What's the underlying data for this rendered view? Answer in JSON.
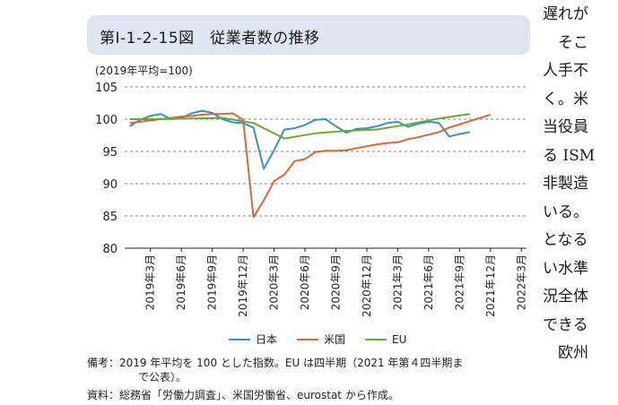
{
  "figure_title": "第Ⅰ-1-2-15図　従業者数の推移",
  "unit_label": "(2019年平均=100)",
  "chart_data": {
    "type": "line",
    "title": "",
    "ylim": [
      80,
      105
    ],
    "yticks": [
      80,
      85,
      90,
      95,
      100,
      105
    ],
    "x": [
      "2019-01",
      "2019-02",
      "2019-03",
      "2019-04",
      "2019-05",
      "2019-06",
      "2019-07",
      "2019-08",
      "2019-09",
      "2019-10",
      "2019-11",
      "2019-12",
      "2020-01",
      "2020-02",
      "2020-03",
      "2020-04",
      "2020-05",
      "2020-06",
      "2020-07",
      "2020-08",
      "2020-09",
      "2020-10",
      "2020-11",
      "2020-12",
      "2021-01",
      "2021-02",
      "2021-03",
      "2021-04",
      "2021-05",
      "2021-06",
      "2021-07",
      "2021-08",
      "2021-09",
      "2021-10",
      "2021-11",
      "2021-12",
      "2022-01",
      "2022-02",
      "2022-03"
    ],
    "xtick_labels": [
      {
        "month": "2019-03",
        "label": "2019年3月"
      },
      {
        "month": "2019-06",
        "label": "2019年6月"
      },
      {
        "month": "2019-09",
        "label": "2019年9月"
      },
      {
        "month": "2019-12",
        "label": "2019年12月"
      },
      {
        "month": "2020-03",
        "label": "2020年3月"
      },
      {
        "month": "2020-06",
        "label": "2020年6月"
      },
      {
        "month": "2020-09",
        "label": "2020年9月"
      },
      {
        "month": "2020-12",
        "label": "2020年12月"
      },
      {
        "month": "2021-03",
        "label": "2021年3月"
      },
      {
        "month": "2021-06",
        "label": "2021年6月"
      },
      {
        "month": "2021-09",
        "label": "2021年9月"
      },
      {
        "month": "2021-12",
        "label": "2021年12月"
      },
      {
        "month": "2022-03",
        "label": "2022年3月"
      }
    ],
    "series": [
      {
        "name": "日本",
        "color": "#3a8fc9",
        "points": [
          [
            "2019-01",
            98.9
          ],
          [
            "2019-02",
            99.9
          ],
          [
            "2019-03",
            100.5
          ],
          [
            "2019-04",
            100.8
          ],
          [
            "2019-05",
            100.0
          ],
          [
            "2019-06",
            100.2
          ],
          [
            "2019-07",
            100.9
          ],
          [
            "2019-08",
            101.3
          ],
          [
            "2019-09",
            101.0
          ],
          [
            "2019-10",
            100.0
          ],
          [
            "2019-11",
            99.5
          ],
          [
            "2019-12",
            99.4
          ],
          [
            "2020-01",
            98.7
          ],
          [
            "2020-02",
            92.3
          ],
          [
            "2020-03",
            95.2
          ],
          [
            "2020-04",
            98.4
          ],
          [
            "2020-05",
            98.6
          ],
          [
            "2020-06",
            99.1
          ],
          [
            "2020-07",
            99.9
          ],
          [
            "2020-08",
            100.0
          ],
          [
            "2020-09",
            98.9
          ],
          [
            "2020-10",
            97.9
          ],
          [
            "2020-11",
            98.5
          ],
          [
            "2020-12",
            98.6
          ],
          [
            "2021-01",
            98.9
          ],
          [
            "2021-02",
            99.4
          ],
          [
            "2021-03",
            99.6
          ],
          [
            "2021-04",
            98.8
          ],
          [
            "2021-05",
            99.3
          ],
          [
            "2021-06",
            99.6
          ],
          [
            "2021-07",
            99.4
          ],
          [
            "2021-08",
            97.3
          ],
          [
            "2021-09",
            97.7
          ],
          [
            "2021-10",
            98.0
          ]
        ]
      },
      {
        "name": "米国",
        "color": "#d9663a",
        "points": [
          [
            "2019-01",
            99.4
          ],
          [
            "2019-02",
            99.6
          ],
          [
            "2019-03",
            99.8
          ],
          [
            "2019-04",
            100.0
          ],
          [
            "2019-05",
            100.2
          ],
          [
            "2019-06",
            100.4
          ],
          [
            "2019-07",
            100.5
          ],
          [
            "2019-08",
            100.7
          ],
          [
            "2019-09",
            100.8
          ],
          [
            "2019-10",
            100.8
          ],
          [
            "2019-11",
            100.9
          ],
          [
            "2019-12",
            99.9
          ],
          [
            "2020-01",
            84.8
          ],
          [
            "2020-02",
            87.4
          ],
          [
            "2020-03",
            90.4
          ],
          [
            "2020-04",
            91.4
          ],
          [
            "2020-05",
            93.5
          ],
          [
            "2020-06",
            93.8
          ],
          [
            "2020-07",
            94.9
          ],
          [
            "2020-08",
            95.1
          ],
          [
            "2020-09",
            95.1
          ],
          [
            "2020-10",
            95.2
          ],
          [
            "2020-11",
            95.5
          ],
          [
            "2020-12",
            95.8
          ],
          [
            "2021-01",
            96.1
          ],
          [
            "2021-02",
            96.3
          ],
          [
            "2021-03",
            96.4
          ],
          [
            "2021-04",
            96.9
          ],
          [
            "2021-05",
            97.2
          ],
          [
            "2021-06",
            97.6
          ],
          [
            "2021-07",
            98.0
          ],
          [
            "2021-08",
            98.7
          ],
          [
            "2021-09",
            99.2
          ],
          [
            "2021-10",
            99.7
          ],
          [
            "2021-11",
            100.2
          ],
          [
            "2021-12",
            100.7
          ]
        ]
      },
      {
        "name": "EU",
        "color": "#6aa832",
        "points": [
          [
            "2019-01",
            100.0
          ],
          [
            "2019-04",
            100.0
          ],
          [
            "2019-07",
            100.1
          ],
          [
            "2019-10",
            100.2
          ],
          [
            "2020-01",
            99.4
          ],
          [
            "2020-04",
            97.0
          ],
          [
            "2020-07",
            97.8
          ],
          [
            "2020-10",
            98.2
          ],
          [
            "2021-01",
            98.4
          ],
          [
            "2021-04",
            99.2
          ],
          [
            "2021-07",
            100.1
          ],
          [
            "2021-10",
            100.8
          ]
        ]
      }
    ],
    "legend_position": "bottom-center",
    "grid": "dashed horizontal"
  },
  "legend": [
    {
      "name": "日本",
      "color": "#3a8fc9"
    },
    {
      "name": "米国",
      "color": "#d9663a"
    },
    {
      "name": "EU",
      "color": "#6aa832"
    }
  ],
  "notes": {
    "line1": "備考：2019 年平均を 100 とした指数。EU は四半期（2021 年第４四半期ま",
    "line2": "で公表）。",
    "line3": "資料：総務省「労働力調査」、米国労働省、eurostat から作成。"
  },
  "body_text": [
    "遅れが",
    "　そこ",
    "人手不",
    "く。米",
    "当役員",
    "る ISM",
    "非製造",
    "いる。",
    "となる",
    "い水準",
    "況全体",
    "できる",
    "　欧州"
  ]
}
